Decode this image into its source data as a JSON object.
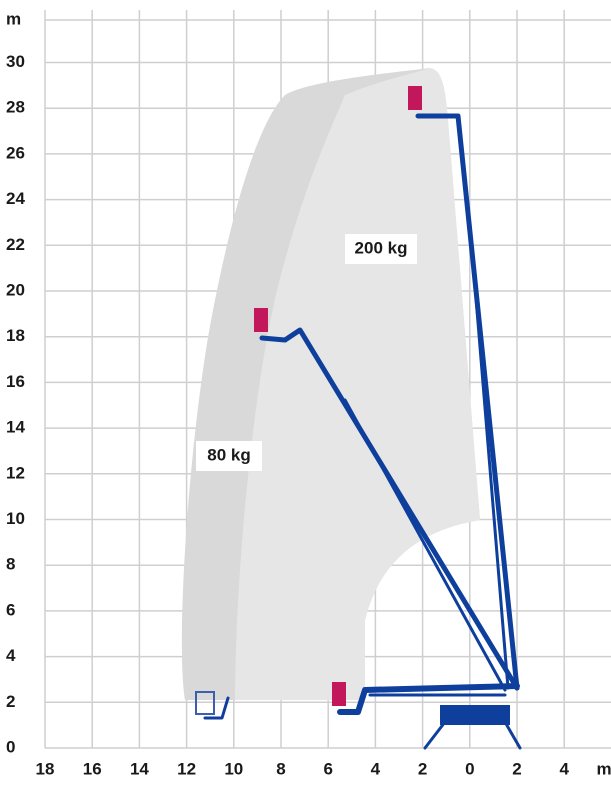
{
  "axes": {
    "y_unit": "m",
    "y_labels": [
      "0",
      "2",
      "4",
      "6",
      "8",
      "10",
      "12",
      "14",
      "16",
      "18",
      "20",
      "22",
      "24",
      "26",
      "28",
      "30"
    ],
    "x_labels": [
      "18",
      "16",
      "14",
      "12",
      "10",
      "8",
      "6",
      "4",
      "2",
      "0",
      "2",
      "4"
    ],
    "x_unit": "m"
  },
  "zones": [
    {
      "label": "200 kg"
    },
    {
      "label": "80 kg"
    }
  ]
}
